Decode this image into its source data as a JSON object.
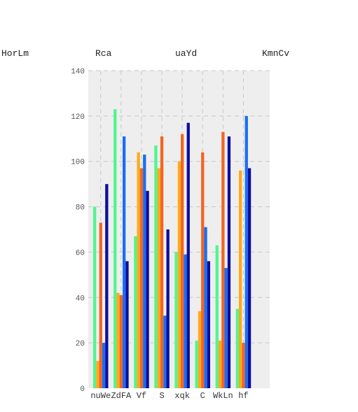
{
  "chart_data": {
    "type": "bar",
    "categories": [
      "nuWe",
      "ZdFA",
      "Vf",
      "S",
      "xqk",
      "C",
      "WkLn",
      "hf"
    ],
    "series": [
      {
        "name": "HorLm",
        "color": "#52f58f",
        "values": [
          80,
          123,
          67,
          107,
          60,
          21,
          63,
          35
        ]
      },
      {
        "name": "Rca",
        "color": "#ffaa1a",
        "values": [
          12,
          42,
          104,
          97,
          100,
          34,
          21,
          96
        ]
      },
      {
        "name": "uaYd",
        "color": "#f26522",
        "values": [
          73,
          41,
          97,
          111,
          112,
          104,
          113,
          20
        ]
      },
      {
        "name": "KmnCv",
        "color": "#1a6ef2",
        "values": [
          20,
          111,
          103,
          32,
          59,
          71,
          53,
          120
        ]
      },
      {
        "name": "",
        "color": "#0d0d9e",
        "values": [
          90,
          56,
          87,
          70,
          117,
          56,
          111,
          97
        ]
      }
    ],
    "ylim": [
      0,
      140
    ],
    "yticks": [
      "0",
      "20",
      "40",
      "60",
      "80",
      "100",
      "120",
      "140"
    ],
    "grid": true,
    "legend": "top",
    "background": "#eeeeee"
  }
}
